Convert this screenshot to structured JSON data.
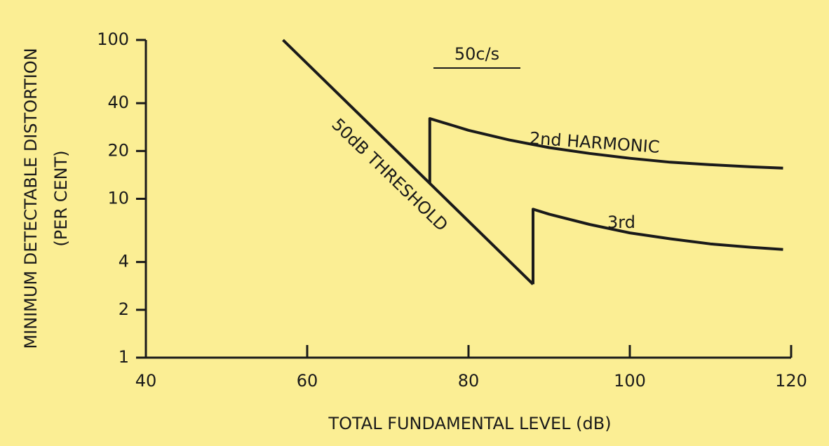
{
  "chart_data": {
    "type": "line",
    "subtitle": "50c/s",
    "xlabel": "TOTAL FUNDAMENTAL LEVEL (dB)",
    "ylabel": [
      "MINIMUM DETECTABLE DISTORTION",
      "(PER CENT)"
    ],
    "xlim": [
      40,
      120
    ],
    "xticks": [
      40,
      60,
      80,
      100,
      120
    ],
    "ylim": [
      1,
      100
    ],
    "yticks": [
      1,
      2,
      4,
      10,
      20,
      40,
      100
    ],
    "ylog": true,
    "color": "#1a1a1a",
    "series": [
      {
        "name": "50dB THRESHOLD",
        "x": [
          57,
          88
        ],
        "values": [
          100,
          2.9
        ]
      },
      {
        "name": "2nd HARMONIC",
        "x": [
          75.2,
          75.2,
          78,
          80,
          85,
          90,
          95,
          100,
          105,
          110,
          115,
          119
        ],
        "values": [
          12.5,
          32,
          29,
          27,
          23.5,
          21,
          19.3,
          18,
          17,
          16.4,
          15.9,
          15.6
        ]
      },
      {
        "name": "3rd",
        "x": [
          88,
          88,
          90,
          95,
          100,
          105,
          110,
          115,
          119
        ],
        "values": [
          2.9,
          8.6,
          8.0,
          6.9,
          6.1,
          5.6,
          5.2,
          4.95,
          4.8
        ]
      }
    ]
  }
}
